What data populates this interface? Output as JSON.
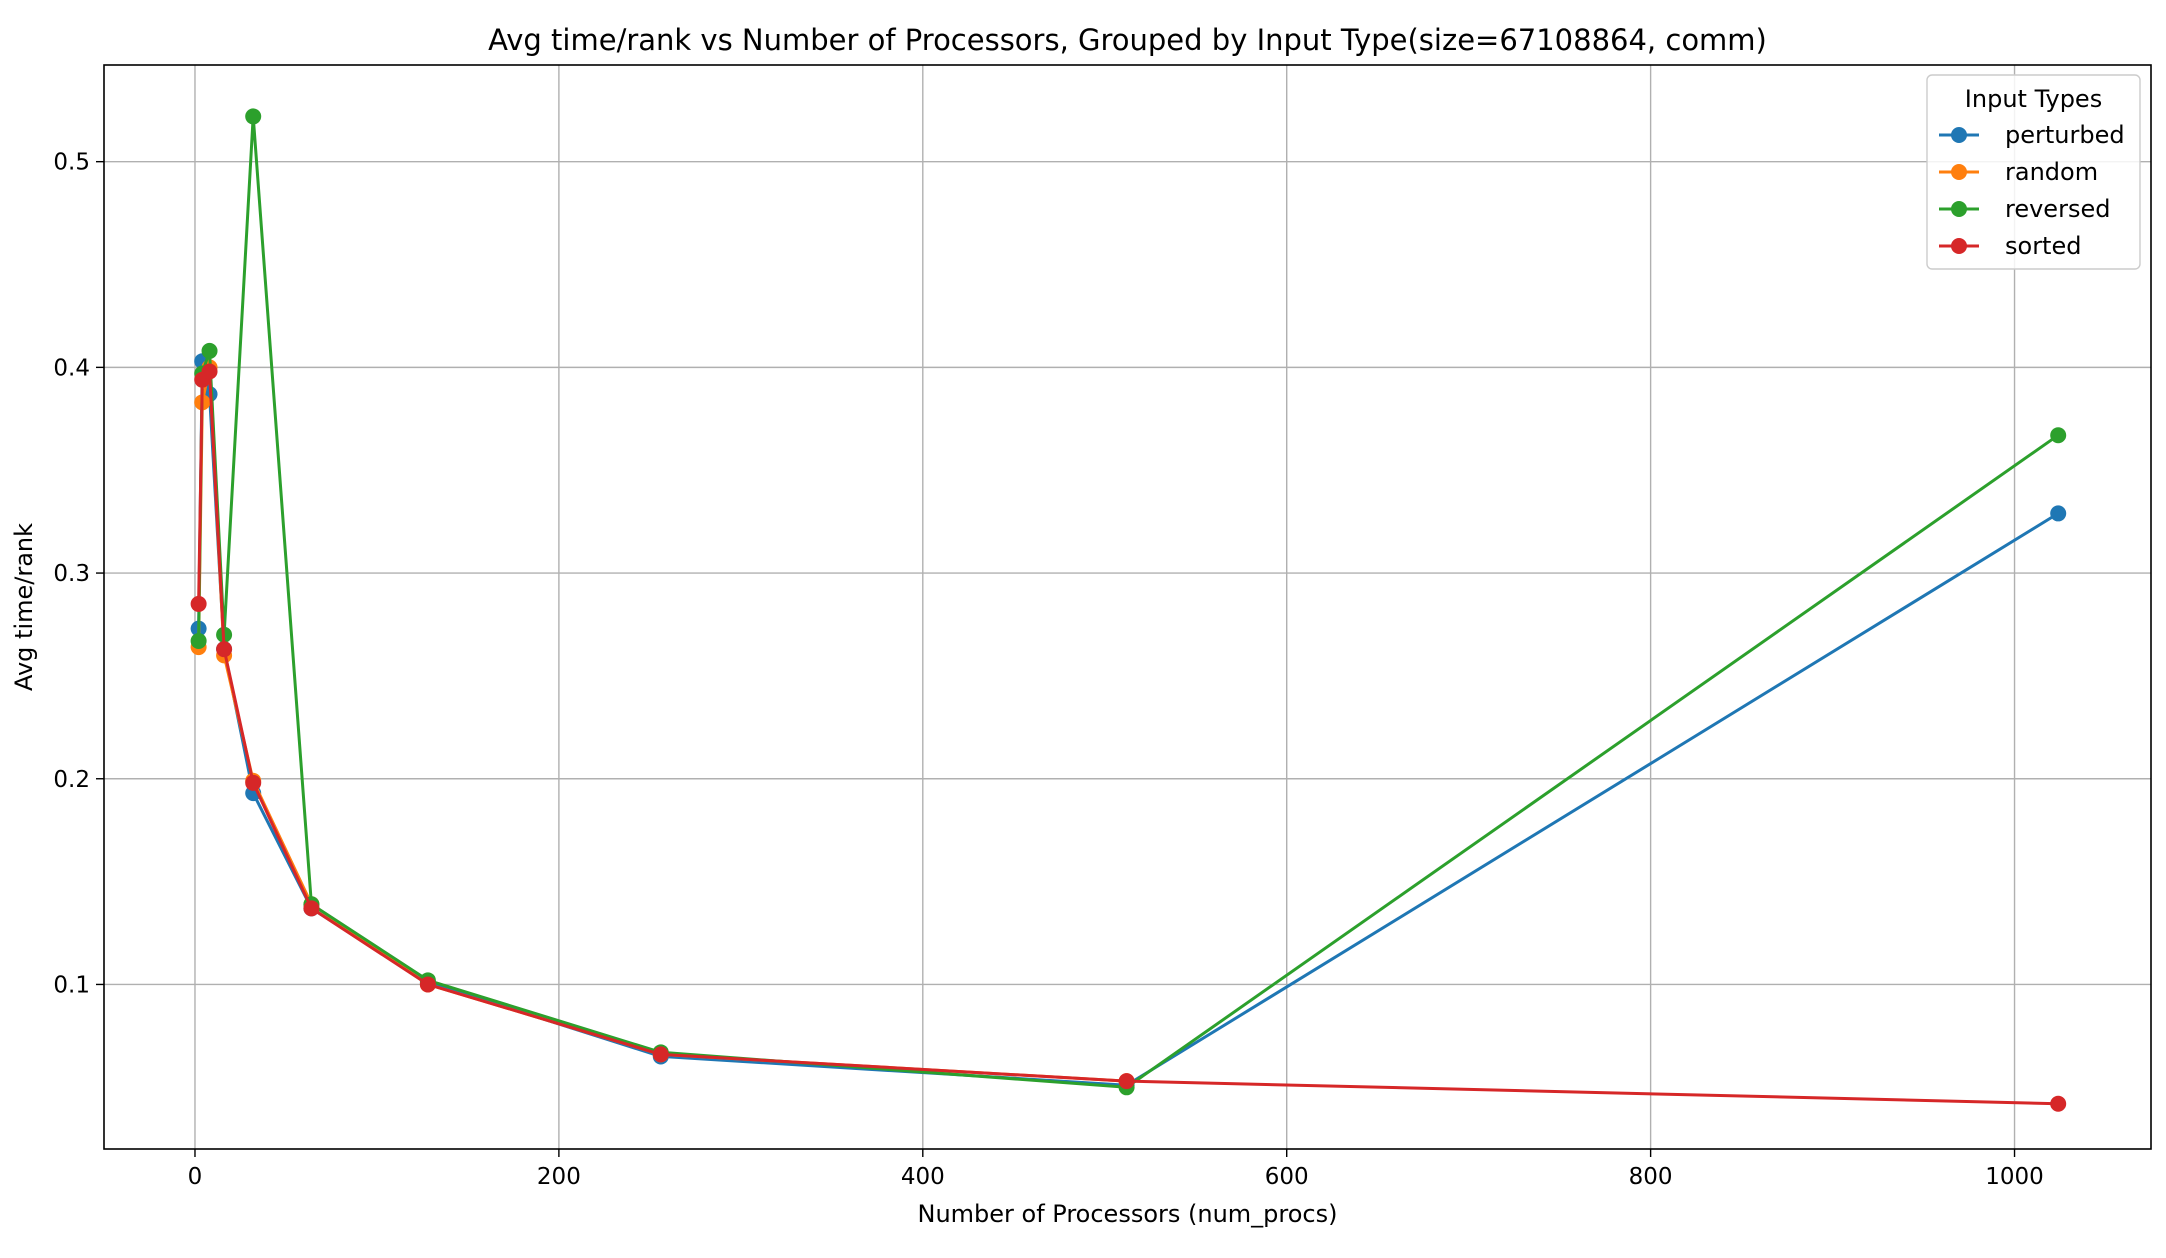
{
  "chart_data": {
    "type": "line",
    "title": "Avg time/rank vs Number of Processors, Grouped by Input Type(size=67108864, comm)",
    "xlabel": "Number of Processors (num_procs)",
    "ylabel": "Avg time/rank",
    "xlim": [
      -50,
      1075
    ],
    "ylim": [
      0.02,
      0.547
    ],
    "xticks": [
      0,
      200,
      400,
      600,
      800,
      1000
    ],
    "yticks": [
      0.1,
      0.2,
      0.3,
      0.4,
      0.5
    ],
    "xtick_labels": [
      "0",
      "200",
      "400",
      "600",
      "800",
      "1000"
    ],
    "ytick_labels": [
      "0.1",
      "0.2",
      "0.3",
      "0.4",
      "0.5"
    ],
    "grid": true,
    "legend": {
      "title": "Input Types",
      "position": "top-right"
    },
    "series": [
      {
        "name": "perturbed",
        "color": "#1f77b4",
        "x": [
          2,
          4,
          8,
          16,
          32,
          64,
          128,
          256,
          512,
          1024
        ],
        "y": [
          0.273,
          0.403,
          0.387,
          0.263,
          0.193,
          0.137,
          0.101,
          0.065,
          0.051,
          0.329
        ]
      },
      {
        "name": "random",
        "color": "#ff7f0e",
        "x": [
          2,
          4,
          8,
          16,
          32,
          64,
          128,
          256,
          512
        ],
        "y": [
          0.264,
          0.383,
          0.4,
          0.26,
          0.199,
          0.139,
          0.1,
          0.066,
          0.053
        ]
      },
      {
        "name": "reversed",
        "color": "#2ca02c",
        "x": [
          2,
          4,
          8,
          16,
          32,
          64,
          128,
          256,
          512,
          1024
        ],
        "y": [
          0.267,
          0.397,
          0.408,
          0.27,
          0.522,
          0.139,
          0.102,
          0.067,
          0.05,
          0.367
        ]
      },
      {
        "name": "sorted",
        "color": "#d62728",
        "x": [
          2,
          4,
          8,
          16,
          32,
          64,
          128,
          256,
          512,
          1024
        ],
        "y": [
          0.285,
          0.394,
          0.398,
          0.263,
          0.198,
          0.137,
          0.1,
          0.066,
          0.053,
          0.042
        ]
      }
    ]
  }
}
